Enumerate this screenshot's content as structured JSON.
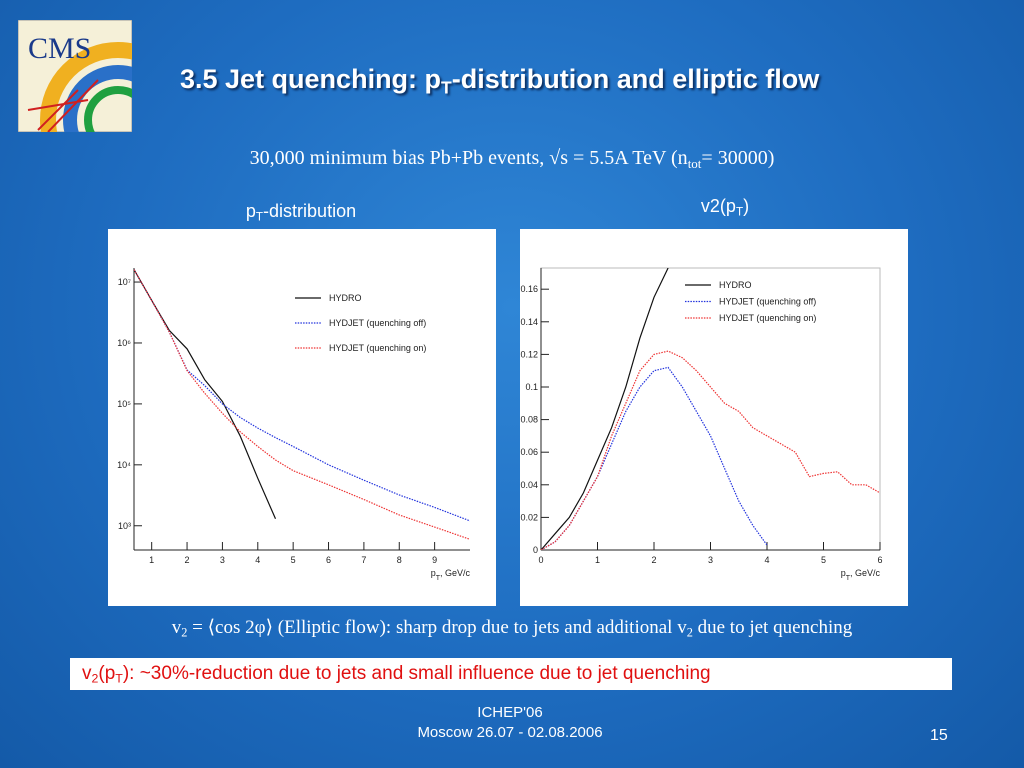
{
  "logo": "CMS",
  "title": [
    "3.5 Jet quenching: p",
    "T",
    "-distribution and elliptic flow"
  ],
  "subtitle": [
    "30,000 minimum bias Pb+Pb events, √s = 5.5A TeV (n",
    "tot",
    "=  30000)"
  ],
  "chart_data": [
    {
      "type": "line",
      "title": [
        "p",
        "T",
        "-distribution"
      ],
      "x_label": [
        "p",
        "T",
        ", GeV/c"
      ],
      "x": [
        0.5,
        1,
        1.5,
        2,
        2.5,
        3,
        3.5,
        4,
        4.5,
        5,
        6,
        7,
        8,
        9,
        10
      ],
      "series": [
        {
          "name": "HYDRO",
          "color": "#111111",
          "style": "solid",
          "values": [
            16000000,
            5000000,
            1600000,
            800000,
            250000,
            110000,
            30000,
            6000,
            1300,
            null,
            null,
            null,
            null,
            null,
            null
          ]
        },
        {
          "name": "HYDJET (quenching off)",
          "color": "#2233dd",
          "style": "dotted",
          "values": [
            16000000,
            5000000,
            1500000,
            360000,
            200000,
            100000,
            60000,
            40000,
            28000,
            20000,
            10000,
            5600,
            3200,
            2000,
            1200
          ]
        },
        {
          "name": "HYDJET (quenching on)",
          "color": "#ee3333",
          "style": "dotted",
          "values": [
            16000000,
            5000000,
            1500000,
            350000,
            150000,
            70000,
            35000,
            20000,
            12000,
            8000,
            4700,
            2700,
            1500,
            950,
            600
          ]
        }
      ],
      "log_y": true,
      "xlim": [
        0.5,
        10
      ],
      "ylim": [
        400,
        17000000
      ],
      "xticks": [
        1,
        2,
        3,
        4,
        5,
        6,
        7,
        8,
        9
      ],
      "yticks": [
        {
          "value": 1000,
          "label": "10³"
        },
        {
          "value": 10000,
          "label": "10⁴"
        },
        {
          "value": 100000,
          "label": "10⁵"
        },
        {
          "value": 1000000,
          "label": "10⁶"
        },
        {
          "value": 10000000,
          "label": "10⁷"
        }
      ],
      "legend": "upper right"
    },
    {
      "type": "line",
      "title": [
        "v2(p",
        "T",
        ")"
      ],
      "x_label": [
        "p",
        "T",
        ", GeV/c"
      ],
      "x": [
        0,
        0.25,
        0.5,
        0.75,
        1,
        1.25,
        1.5,
        1.75,
        2,
        2.25,
        2.5,
        2.75,
        3,
        3.25,
        3.5,
        3.75,
        4,
        4.25,
        4.5,
        4.75,
        5,
        5.25,
        5.5,
        5.75,
        6
      ],
      "series": [
        {
          "name": "HYDRO",
          "color": "#111111",
          "style": "solid",
          "values": [
            0,
            0.01,
            0.02,
            0.035,
            0.055,
            0.075,
            0.1,
            0.13,
            0.155,
            0.173,
            null,
            null,
            null,
            null,
            null,
            null,
            null,
            null,
            null,
            null,
            null,
            null,
            null,
            null,
            null
          ]
        },
        {
          "name": "HYDJET (quenching off)",
          "color": "#2233dd",
          "style": "dotted",
          "values": [
            0,
            0.005,
            0.015,
            0.03,
            0.045,
            0.065,
            0.085,
            0.1,
            0.11,
            0.112,
            0.1,
            0.085,
            0.07,
            0.05,
            0.03,
            0.015,
            0.003,
            null,
            null,
            null,
            null,
            null,
            null,
            null,
            null
          ]
        },
        {
          "name": "HYDJET (quenching on)",
          "color": "#ee3333",
          "style": "dotted",
          "values": [
            0,
            0.005,
            0.015,
            0.03,
            0.045,
            0.07,
            0.09,
            0.11,
            0.12,
            0.122,
            0.118,
            0.11,
            0.1,
            0.09,
            0.085,
            0.075,
            0.07,
            0.065,
            0.06,
            0.045,
            0.047,
            0.048,
            0.04,
            0.04,
            0.035
          ]
        }
      ],
      "log_y": false,
      "xlim": [
        0,
        6
      ],
      "ylim": [
        0,
        0.173
      ],
      "xticks": [
        0,
        1,
        2,
        3,
        4,
        5,
        6
      ],
      "yticks": [
        0,
        0.02,
        0.04,
        0.06,
        0.08,
        0.1,
        0.12,
        0.14,
        0.16
      ],
      "legend": "upper right"
    }
  ],
  "note1": [
    "v",
    "2",
    " = ⟨cos 2φ⟩ (Elliptic flow): sharp drop due to jets and additional v",
    "2",
    " due to jet quenching"
  ],
  "note2": [
    "v",
    "2",
    "(p",
    "T",
    "): ~30%-reduction due to jets and small influence due to jet quenching"
  ],
  "footer": {
    "event": "ICHEP'06",
    "place": "Moscow 26.07 - 02.08.2006",
    "page": "15"
  }
}
